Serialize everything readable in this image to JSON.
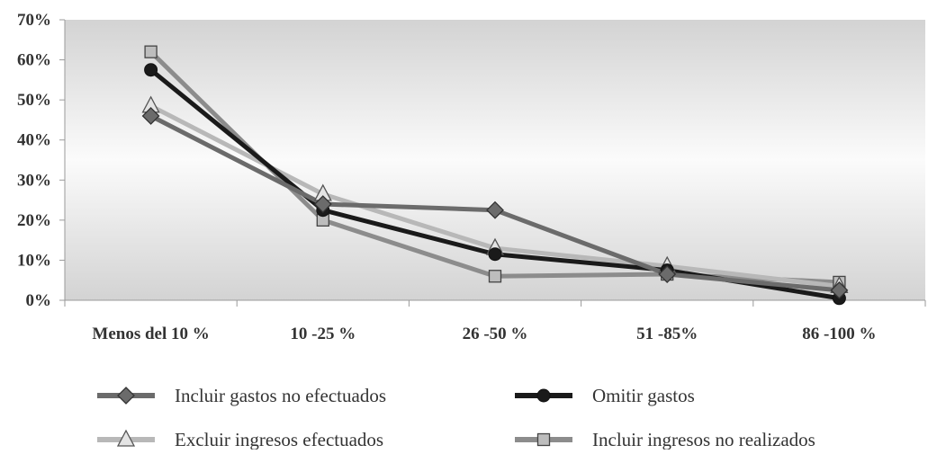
{
  "chart_data": {
    "type": "line",
    "categories": [
      "Menos del 10 %",
      "10 -25 %",
      "26 -50 %",
      "51 -85%",
      "86 -100 %"
    ],
    "ylim": [
      0,
      70
    ],
    "y_ticks": [
      "0%",
      "10%",
      "20%",
      "30%",
      "40%",
      "50%",
      "60%",
      "70%"
    ],
    "y_tick_values": [
      0,
      10,
      20,
      30,
      40,
      50,
      60,
      70
    ],
    "grid": false,
    "legend_position": "bottom",
    "series": [
      {
        "name": "Incluir gastos no efectuados",
        "values": [
          46,
          24,
          22.5,
          6.5,
          2.5
        ],
        "color": "#6b6b6b",
        "marker": "diamond"
      },
      {
        "name": "Omitir gastos",
        "values": [
          57.5,
          22.5,
          11.5,
          7.5,
          0.5
        ],
        "color": "#1a1a1a",
        "marker": "circle"
      },
      {
        "name": "Excluir ingresos efectuados",
        "values": [
          48.5,
          26.5,
          13,
          8.5,
          3.5
        ],
        "color": "#b8b8b8",
        "marker": "triangle"
      },
      {
        "name": "Incluir ingresos no realizados",
        "values": [
          62,
          20,
          6,
          6.5,
          4.5
        ],
        "color": "#8c8c8c",
        "marker": "square"
      }
    ]
  }
}
